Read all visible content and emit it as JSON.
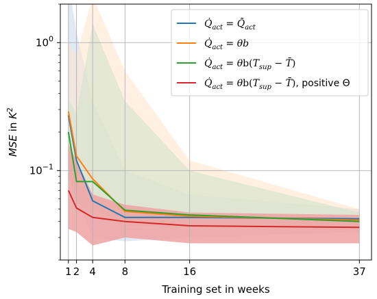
{
  "chart_data": {
    "type": "line",
    "title": "",
    "xlabel": "Training set in weeks",
    "ylabel": "MSE in K²",
    "y_scale": "log",
    "ylim": [
      0.02,
      2.0
    ],
    "xlim": [
      0,
      38.5
    ],
    "x": [
      1,
      2,
      4,
      8,
      16,
      37
    ],
    "x_tick_labels": [
      "1",
      "2",
      "4",
      "8",
      "16",
      "37"
    ],
    "y_tick_labels": [
      {
        "value": 0.1,
        "base": "10",
        "exp": "−1"
      },
      {
        "value": 1.0,
        "base": "10",
        "exp": "0"
      }
    ],
    "grid": true,
    "legend_position": "top-right",
    "series": [
      {
        "name": "Q̇act = Q̃̇act",
        "color": "#1f77b4",
        "values": [
          0.27,
          0.12,
          0.058,
          0.043,
          0.043,
          0.042
        ],
        "band_low": [
          0.1,
          0.06,
          0.03,
          0.028,
          0.03,
          0.033
        ],
        "band_high": [
          3.0,
          1.2,
          0.35,
          0.1,
          0.065,
          0.05
        ],
        "band_color": "#c6d9ec"
      },
      {
        "name": "Q̇act = θb",
        "color": "#ff7f0e",
        "values": [
          0.29,
          0.13,
          0.086,
          0.048,
          0.044,
          0.041
        ],
        "band_low": [
          0.12,
          0.07,
          0.045,
          0.036,
          0.035,
          0.034
        ],
        "band_high": [
          1.0,
          0.8,
          2.3,
          0.6,
          0.12,
          0.05
        ],
        "band_color": "#ffe4cb"
      },
      {
        "name": "Q̇act = θb(Tsup − T̄)",
        "color": "#2ca02c",
        "values": [
          0.2,
          0.082,
          0.082,
          0.049,
          0.045,
          0.04
        ],
        "band_low": [
          0.09,
          0.055,
          0.05,
          0.037,
          0.036,
          0.034
        ],
        "band_high": [
          0.36,
          0.28,
          1.4,
          0.35,
          0.1,
          0.047
        ],
        "band_color": "#cfe3c8"
      },
      {
        "name": "Q̇act = θb(Tsup − T̄), positive Θ",
        "color": "#d62728",
        "values": [
          0.07,
          0.051,
          0.043,
          0.04,
          0.037,
          0.036
        ],
        "band_low": [
          0.035,
          0.033,
          0.026,
          0.03,
          0.027,
          0.027
        ],
        "band_high": [
          0.16,
          0.12,
          0.065,
          0.054,
          0.047,
          0.045
        ],
        "band_color": "#eea2a2"
      }
    ]
  }
}
